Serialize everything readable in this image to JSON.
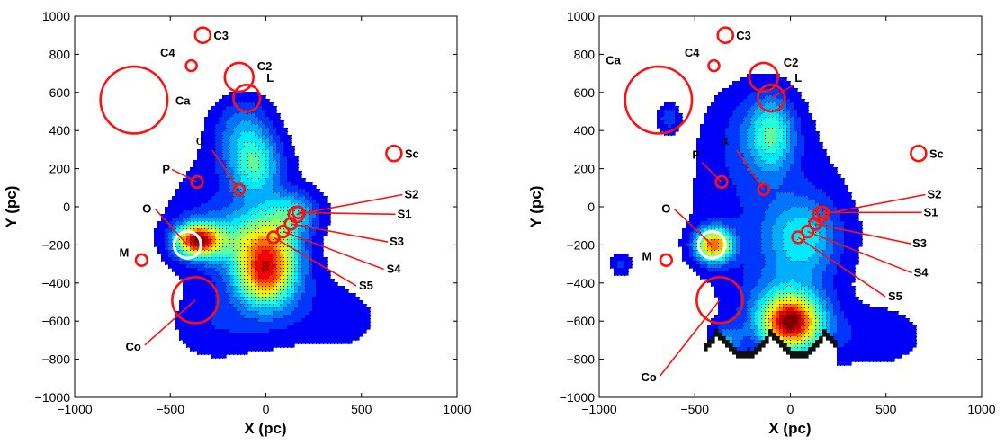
{
  "chart_data": [
    {
      "type": "contour",
      "xlabel": "X (pc)",
      "ylabel": "Y (pc)",
      "xlim": [
        -1000,
        1000
      ],
      "ylim": [
        -1000,
        1000
      ],
      "xticks": [
        -1000,
        -500,
        0,
        500,
        1000
      ],
      "yticks": [
        -1000,
        -800,
        -600,
        -400,
        -200,
        0,
        200,
        400,
        600,
        800,
        1000
      ],
      "grid": false,
      "colormap": "jet",
      "peaks": [
        {
          "x": -360,
          "y": -170,
          "relative_level": 0.92
        },
        {
          "x": 0,
          "y": -250,
          "relative_level": 0.85
        },
        {
          "x": -20,
          "y": -380,
          "relative_level": 0.75
        },
        {
          "x": -50,
          "y": 220,
          "relative_level": 0.4
        }
      ],
      "annotations": [
        {
          "label": "C3",
          "x": -330,
          "y": 900,
          "r": 40
        },
        {
          "label": "C4",
          "x": -390,
          "y": 740,
          "r": 28
        },
        {
          "label": "C2",
          "x": -140,
          "y": 680,
          "r": 75
        },
        {
          "label": "L",
          "x": -100,
          "y": 570,
          "r": 70
        },
        {
          "label": "Ca",
          "x": -690,
          "y": 560,
          "r": 175
        },
        {
          "label": "Sc",
          "x": 670,
          "y": 280,
          "r": 40
        },
        {
          "label": "α",
          "x": -140,
          "y": 90,
          "r": 25
        },
        {
          "label": "P",
          "x": -360,
          "y": 130,
          "r": 30
        },
        {
          "label": "S2",
          "x": 160,
          "y": -40,
          "r": 40
        },
        {
          "label": "S1",
          "x": 170,
          "y": -30,
          "r": 30
        },
        {
          "label": "S3",
          "x": 130,
          "y": -90,
          "r": 30
        },
        {
          "label": "S4",
          "x": 90,
          "y": -130,
          "r": 30
        },
        {
          "label": "S5",
          "x": 40,
          "y": -160,
          "r": 30
        },
        {
          "label": "O",
          "x": -410,
          "y": -200,
          "r": 70
        },
        {
          "label": "M",
          "x": -650,
          "y": -280,
          "r": 30
        },
        {
          "label": "Co",
          "x": -370,
          "y": -490,
          "r": 120
        }
      ]
    },
    {
      "type": "contour",
      "xlabel": "X (pc)",
      "ylabel": "Y (pc)",
      "xlim": [
        -1000,
        1000
      ],
      "ylim": [
        -1000,
        1000
      ],
      "xticks": [
        -1000,
        -500,
        0,
        500,
        1000
      ],
      "yticks": [
        -1000,
        -800,
        -600,
        -400,
        -200,
        0,
        200,
        400,
        600,
        800,
        1000
      ],
      "grid": false,
      "colormap": "jet",
      "peaks": [
        {
          "x": -400,
          "y": -200,
          "relative_level": 0.92
        },
        {
          "x": 0,
          "y": -610,
          "relative_level": 0.95
        },
        {
          "x": -100,
          "y": 380,
          "relative_level": 0.4
        },
        {
          "x": 50,
          "y": -150,
          "relative_level": 0.38
        }
      ],
      "annotations": [
        {
          "label": "C3",
          "x": -340,
          "y": 900,
          "r": 40
        },
        {
          "label": "C4",
          "x": -400,
          "y": 740,
          "r": 28
        },
        {
          "label": "C2",
          "x": -140,
          "y": 680,
          "r": 75
        },
        {
          "label": "L",
          "x": -100,
          "y": 570,
          "r": 70
        },
        {
          "label": "Ca",
          "x": -690,
          "y": 560,
          "r": 175
        },
        {
          "label": "Sc",
          "x": 670,
          "y": 280,
          "r": 40
        },
        {
          "label": "α",
          "x": -140,
          "y": 90,
          "r": 25
        },
        {
          "label": "P",
          "x": -360,
          "y": 130,
          "r": 30
        },
        {
          "label": "S2",
          "x": 160,
          "y": -40,
          "r": 40
        },
        {
          "label": "S1",
          "x": 170,
          "y": -30,
          "r": 30
        },
        {
          "label": "S3",
          "x": 130,
          "y": -90,
          "r": 30
        },
        {
          "label": "S4",
          "x": 90,
          "y": -130,
          "r": 30
        },
        {
          "label": "S5",
          "x": 40,
          "y": -160,
          "r": 30
        },
        {
          "label": "O",
          "x": -410,
          "y": -200,
          "r": 70
        },
        {
          "label": "M",
          "x": -650,
          "y": -280,
          "r": 30
        },
        {
          "label": "Co",
          "x": -370,
          "y": -490,
          "r": 120
        }
      ]
    }
  ]
}
